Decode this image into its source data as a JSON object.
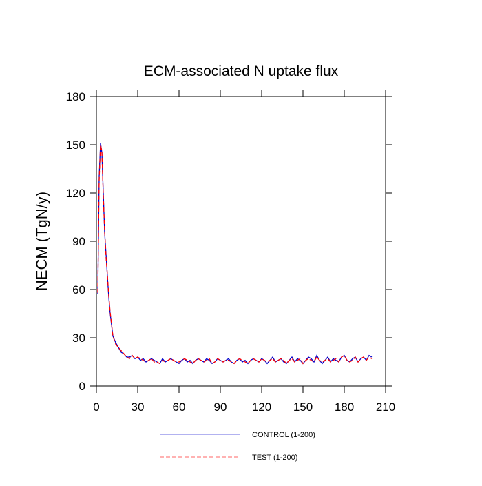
{
  "chart_data": {
    "type": "line",
    "title": "ECM-associated N uptake flux",
    "ylabel": "NECM  (TgN/y)",
    "x": [
      1,
      2,
      3,
      4,
      5,
      6,
      7,
      8,
      9,
      10,
      12,
      14,
      16,
      18,
      20,
      22,
      24,
      26,
      28,
      30,
      32,
      34,
      36,
      38,
      40,
      42,
      44,
      46,
      48,
      50,
      52,
      54,
      56,
      58,
      60,
      62,
      64,
      66,
      68,
      70,
      72,
      74,
      76,
      78,
      80,
      82,
      84,
      86,
      88,
      90,
      92,
      94,
      96,
      98,
      100,
      102,
      104,
      106,
      108,
      110,
      112,
      114,
      116,
      118,
      120,
      122,
      124,
      126,
      128,
      130,
      132,
      134,
      136,
      138,
      140,
      142,
      144,
      146,
      148,
      150,
      152,
      154,
      156,
      158,
      160,
      162,
      164,
      166,
      168,
      170,
      172,
      174,
      176,
      178,
      180,
      182,
      184,
      186,
      188,
      190,
      192,
      194,
      196,
      198,
      200
    ],
    "series": [
      {
        "name": "CONTROL (1-200)",
        "color": "#0000cc",
        "dash": false,
        "values": [
          57,
          130,
          151,
          145,
          120,
          95,
          82,
          68,
          55,
          45,
          31,
          27,
          24,
          21,
          20,
          18,
          18,
          19,
          17,
          18,
          16,
          17,
          15,
          16,
          17,
          16,
          15,
          14,
          17,
          15,
          16,
          17,
          16,
          15,
          14,
          16,
          17,
          15,
          16,
          14,
          16,
          17,
          16,
          15,
          17,
          16,
          14,
          15,
          17,
          16,
          15,
          16,
          17,
          15,
          14,
          16,
          17,
          15,
          16,
          14,
          16,
          17,
          16,
          15,
          17,
          16,
          14,
          16,
          18,
          15,
          16,
          17,
          15,
          14,
          16,
          18,
          15,
          17,
          16,
          14,
          16,
          18,
          17,
          15,
          19,
          16,
          14,
          16,
          18,
          15,
          17,
          16,
          15,
          18,
          19,
          16,
          15,
          17,
          18,
          15,
          17,
          18,
          16,
          19,
          18
        ]
      },
      {
        "name": "TEST (1-200)",
        "color": "#ff0000",
        "dash": true,
        "values": [
          58,
          128,
          150,
          146,
          118,
          96,
          80,
          69,
          56,
          46,
          31,
          26,
          24,
          22,
          20,
          18,
          17,
          19,
          17,
          18,
          17,
          16,
          15,
          16,
          17,
          15,
          15,
          14,
          16,
          15,
          16,
          17,
          16,
          15,
          15,
          16,
          17,
          16,
          15,
          14,
          16,
          17,
          16,
          15,
          16,
          17,
          14,
          15,
          17,
          16,
          15,
          16,
          16,
          15,
          14,
          16,
          17,
          16,
          15,
          14,
          16,
          17,
          16,
          15,
          17,
          16,
          15,
          16,
          17,
          15,
          16,
          17,
          16,
          14,
          16,
          17,
          15,
          16,
          17,
          14,
          16,
          17,
          16,
          15,
          18,
          16,
          15,
          16,
          17,
          15,
          16,
          17,
          15,
          18,
          19,
          16,
          15,
          16,
          18,
          15,
          17,
          18,
          16,
          18,
          17
        ]
      }
    ],
    "xlim": [
      0,
      210
    ],
    "xticks": [
      0,
      30,
      60,
      90,
      120,
      150,
      180,
      210
    ],
    "ylim": [
      0,
      180
    ],
    "yticks": [
      0,
      30,
      60,
      90,
      120,
      150,
      180
    ]
  }
}
